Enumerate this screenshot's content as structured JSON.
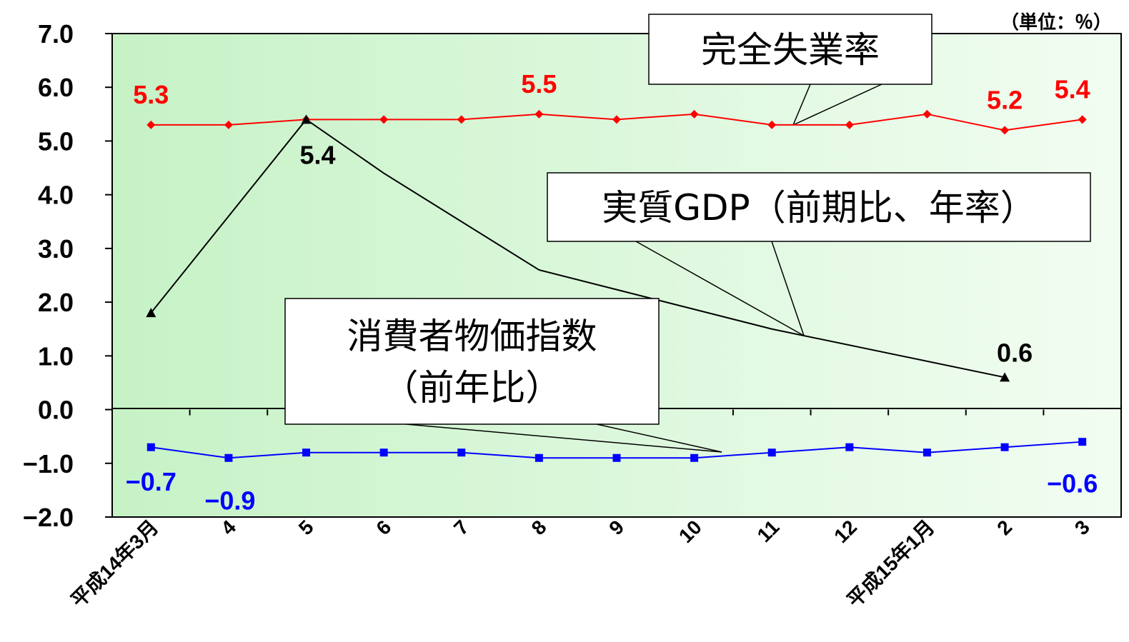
{
  "unit_label": "（単位：％）",
  "colors": {
    "unemployment": "#ff0000",
    "gdp": "#000000",
    "cpi": "#0000ff",
    "plot_bg_start": "#c6f2c6",
    "plot_bg_end": "#f2fdf2"
  },
  "callouts": {
    "unemployment": [
      "完全失業率"
    ],
    "gdp": [
      "実質GDP（前期比、年率）"
    ],
    "cpi": [
      "消費者物価指数",
      "（前年比）"
    ]
  },
  "chart_data": {
    "type": "line",
    "categories": [
      "平成14年3月",
      "4",
      "5",
      "6",
      "7",
      "8",
      "9",
      "10",
      "11",
      "12",
      "平成15年1月",
      "2",
      "3"
    ],
    "ylim": [
      -2.0,
      7.0
    ],
    "yticks": [
      "7.0",
      "6.0",
      "5.0",
      "4.0",
      "3.0",
      "2.0",
      "1.0",
      "0.0",
      "−1.0",
      "−2.0"
    ],
    "grid": false,
    "series": [
      {
        "key": "unemployment",
        "values": [
          5.3,
          5.3,
          5.4,
          5.4,
          5.4,
          5.5,
          5.4,
          5.5,
          5.3,
          5.3,
          5.5,
          5.2,
          5.4
        ],
        "marker": "diamond",
        "labels": [
          {
            "index": 0,
            "text": "5.3"
          },
          {
            "index": 5,
            "text": "5.5"
          },
          {
            "index": 11,
            "text": "5.2"
          },
          {
            "index": 12,
            "text": "5.4"
          }
        ]
      },
      {
        "key": "gdp",
        "points": [
          {
            "x": 0,
            "y": 1.8
          },
          {
            "x": 2,
            "y": 5.4
          },
          {
            "x": 3,
            "y": 4.4
          },
          {
            "x": 5,
            "y": 2.6
          },
          {
            "x": 8,
            "y": 1.5
          },
          {
            "x": 11,
            "y": 0.6
          }
        ],
        "markers_at": [
          0,
          2,
          11
        ],
        "marker": "triangle",
        "labels": [
          {
            "index": 2,
            "text": "5.4"
          },
          {
            "index": 11,
            "text": "0.6"
          }
        ]
      },
      {
        "key": "cpi",
        "values": [
          -0.7,
          -0.9,
          -0.8,
          -0.8,
          -0.8,
          -0.9,
          -0.9,
          -0.9,
          -0.8,
          -0.7,
          -0.8,
          -0.7,
          -0.6
        ],
        "marker": "square",
        "labels": [
          {
            "index": 0,
            "text": "−0.7"
          },
          {
            "index": 1,
            "text": "−0.9"
          },
          {
            "index": 12,
            "text": "−0.6"
          }
        ]
      }
    ]
  }
}
